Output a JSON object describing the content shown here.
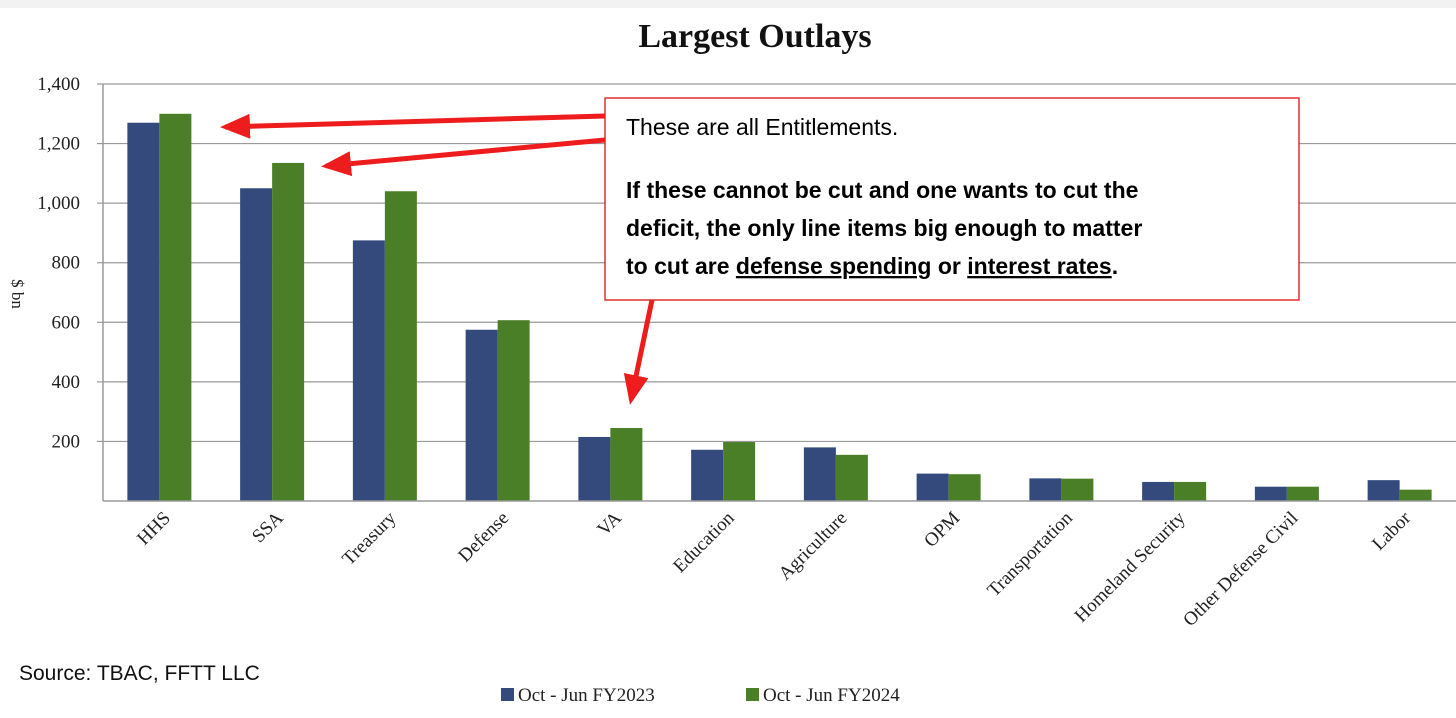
{
  "chart_data": {
    "type": "bar",
    "title": "Largest Outlays",
    "ylabel": "$ bn",
    "xlabel": "",
    "ylim": [
      0,
      1400
    ],
    "yticks": [
      "200",
      "400",
      "600",
      "800",
      "1,000",
      "1,200",
      "1,400"
    ],
    "ytick_values": [
      200,
      400,
      600,
      800,
      1000,
      1200,
      1400
    ],
    "grid": true,
    "legend_position": "bottom",
    "categories": [
      "HHS",
      "SSA",
      "Treasury",
      "Defense",
      "VA",
      "Education",
      "Agriculture",
      "OPM",
      "Transportation",
      "Homeland Security",
      "Other Defense Civil",
      "Labor"
    ],
    "series": [
      {
        "name": "Oct - Jun FY2023",
        "color": "#344a7c",
        "values": [
          1270,
          1050,
          875,
          575,
          215,
          172,
          180,
          92,
          76,
          64,
          48,
          70
        ]
      },
      {
        "name": "Oct - Jun FY2024",
        "color": "#4a7f27",
        "values": [
          1300,
          1135,
          1040,
          607,
          245,
          198,
          155,
          90,
          75,
          64,
          48,
          38
        ]
      }
    ]
  },
  "callout": {
    "line1": "These are all Entitlements.",
    "line2": "If these cannot be cut and one wants to cut the",
    "line3": "deficit, the only line items big enough to matter",
    "line4_prefix": "to cut are ",
    "line4_link1": "defense spending",
    "line4_mid": " or ",
    "line4_link2": "interest rates",
    "line4_suffix": ".",
    "border_color": "#e03030",
    "arrow_color": "#ee1c1c"
  },
  "source": "Source: TBAC, FFTT LLC"
}
